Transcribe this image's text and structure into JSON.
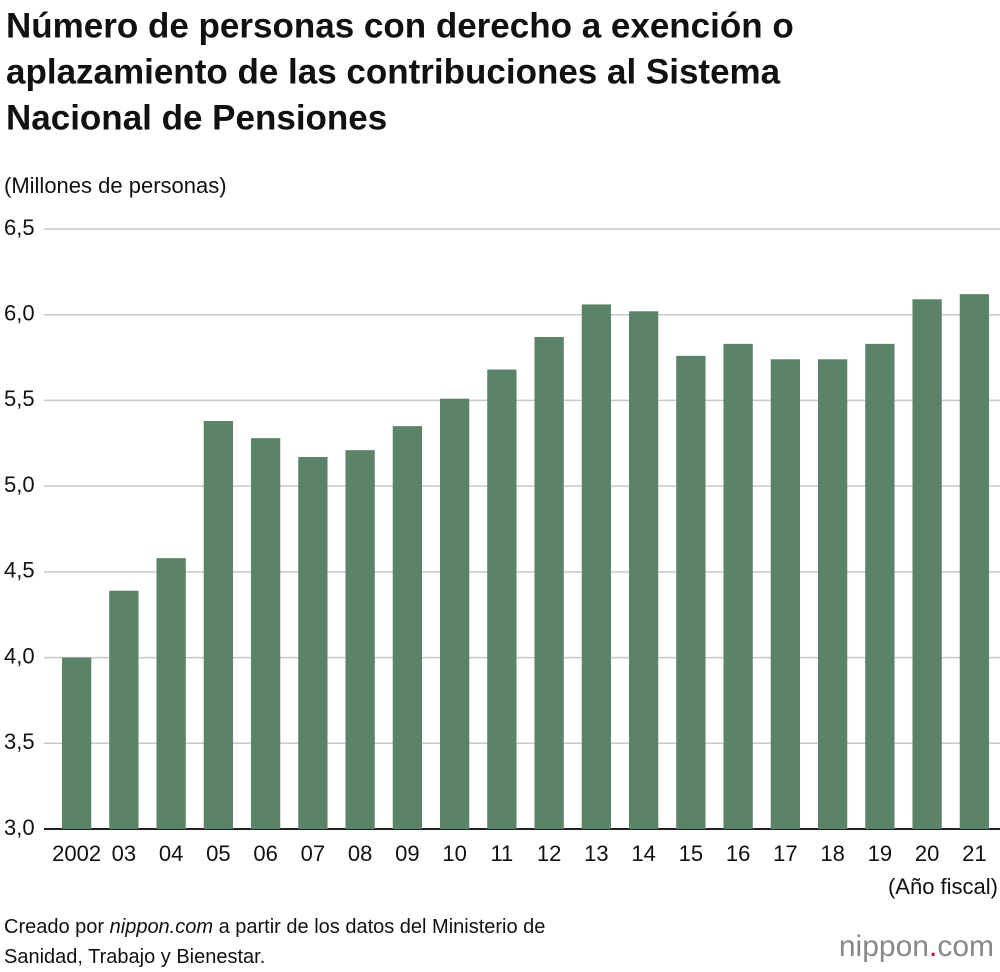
{
  "chart_data": {
    "type": "bar",
    "title": [
      "Número de personas con derecho a exención o",
      "aplazamiento de las contribuciones al Sistema",
      "Nacional de Pensiones"
    ],
    "y_label": "(Millones de personas)",
    "x_label": "(Año fiscal)",
    "categories": [
      "2002",
      "03",
      "04",
      "05",
      "06",
      "07",
      "08",
      "09",
      "10",
      "11",
      "12",
      "13",
      "14",
      "15",
      "16",
      "17",
      "18",
      "19",
      "20",
      "21"
    ],
    "values": [
      4.0,
      4.39,
      4.58,
      5.38,
      5.28,
      5.17,
      5.21,
      5.35,
      5.51,
      5.68,
      5.87,
      6.06,
      6.02,
      5.76,
      5.83,
      5.74,
      5.74,
      5.83,
      6.09,
      6.12
    ],
    "color": "#5b8367",
    "ylim": [
      3.0,
      6.5
    ],
    "yticks": [
      {
        "value": 3.0,
        "label": "3,0"
      },
      {
        "value": 3.5,
        "label": "3,5"
      },
      {
        "value": 4.0,
        "label": "4,0"
      },
      {
        "value": 4.5,
        "label": "4,5"
      },
      {
        "value": 5.0,
        "label": "5,0"
      },
      {
        "value": 5.5,
        "label": "5,5"
      },
      {
        "value": 6.0,
        "label": "6,0"
      },
      {
        "value": 6.5,
        "label": "6,5"
      }
    ],
    "grid": true
  },
  "source": {
    "prefix": "Creado por",
    "site": "nippon.com",
    "rest": "a partir de los datos del Ministerio de",
    "line2": "Sanidad, Trabajo y Bienestar."
  },
  "logo": [
    "nippon",
    ".",
    "com"
  ]
}
